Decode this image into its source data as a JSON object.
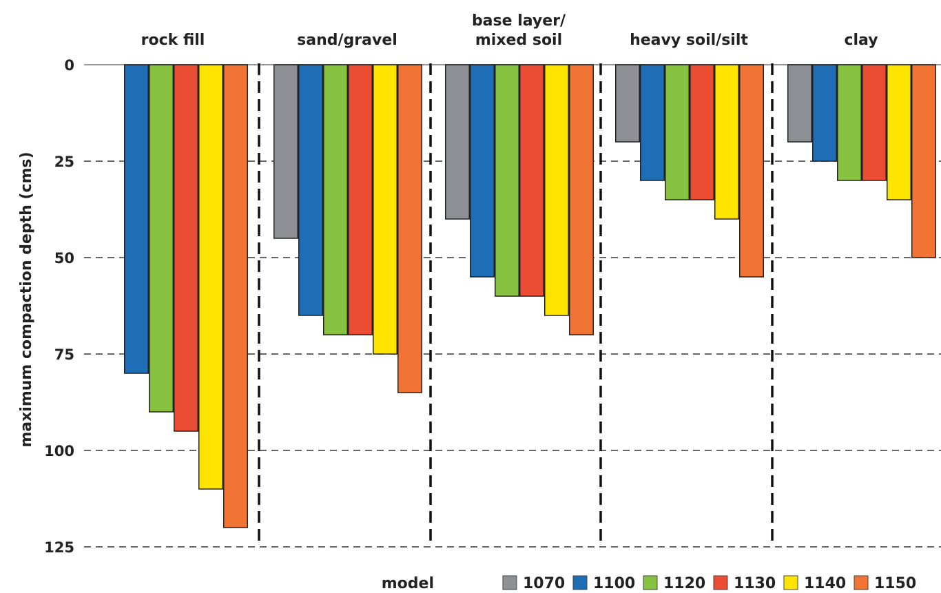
{
  "chart_data": {
    "type": "bar",
    "orientation": "vertical-downward",
    "ylabel": "maximum compaction depth (cms)",
    "ylim": [
      0,
      125
    ],
    "yticks": [
      0,
      25,
      50,
      75,
      100,
      125
    ],
    "grid": "dashed horizontal lines at ticks",
    "categories": [
      "rock fill",
      "sand/gravel",
      "base layer/\nmixed soil",
      "heavy soil/silt",
      "clay"
    ],
    "legend_title": "model",
    "legend_position": "bottom",
    "series": [
      {
        "name": "1070",
        "color": "#8f9096",
        "values": [
          null,
          45,
          40,
          20,
          20
        ]
      },
      {
        "name": "1100",
        "color": "#1f6db5",
        "values": [
          80,
          65,
          55,
          30,
          25
        ]
      },
      {
        "name": "1120",
        "color": "#86c140",
        "values": [
          90,
          70,
          60,
          35,
          30
        ]
      },
      {
        "name": "1130",
        "color": "#ea4c34",
        "values": [
          95,
          70,
          60,
          35,
          30
        ]
      },
      {
        "name": "1140",
        "color": "#ffe400",
        "values": [
          110,
          75,
          65,
          40,
          35
        ]
      },
      {
        "name": "1150",
        "color": "#f27434",
        "values": [
          120,
          85,
          70,
          55,
          50
        ]
      }
    ]
  }
}
